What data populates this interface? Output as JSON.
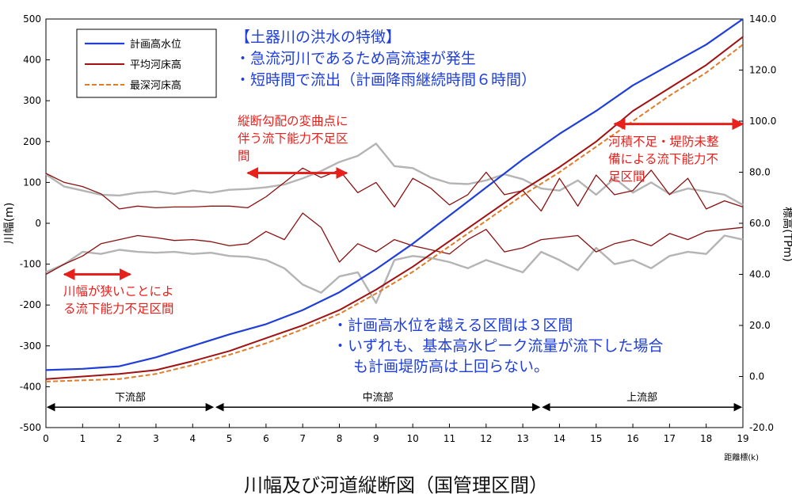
{
  "chart_data": {
    "type": "line",
    "title": "川幅及び河道縦断図（国管理区間）",
    "xlabel": "距離標(k)",
    "ylabel_left": "川幅(m)",
    "ylabel_right": "標高(TPm)",
    "xlim": [
      0,
      19
    ],
    "ylim_left": [
      -500,
      500
    ],
    "ylim_right": [
      -20,
      140
    ],
    "x_ticks": [
      "0",
      "1",
      "2",
      "3",
      "4",
      "5",
      "6",
      "7",
      "8",
      "9",
      "10",
      "11",
      "12",
      "13",
      "14",
      "15",
      "16",
      "17",
      "18",
      "19"
    ],
    "y_left_ticks": [
      "500",
      "400",
      "300",
      "200",
      "100",
      "0",
      "-100",
      "-200",
      "-300",
      "-400",
      "-500"
    ],
    "y_right_ticks": [
      "140.0",
      "120.0",
      "100.0",
      "80.0",
      "60.0",
      "40.0",
      "20.0",
      "0.0",
      "-20.0"
    ],
    "grid": false,
    "legend_position": "top-left",
    "colors": {
      "plan_wl": "#1f3fd8",
      "avg_bed": "#a01212",
      "deep_bed": "#e07b2a",
      "width": "#b4b4b4",
      "low_water": "#8a1010",
      "ann_red": "#e8201c",
      "ann_blue": "#1f3fd8"
    },
    "series": [
      {
        "name": "計画高水位",
        "axis": "right",
        "x": [
          0,
          1,
          2,
          3,
          4,
          5,
          6,
          7,
          8,
          9,
          10,
          11,
          12,
          13,
          14,
          15,
          16,
          17,
          18,
          19
        ],
        "values": [
          2.5,
          3.0,
          4.0,
          7.5,
          12,
          16.5,
          20.5,
          26,
          33,
          42,
          52,
          63,
          74,
          85,
          95,
          104,
          114,
          122,
          130,
          140
        ]
      },
      {
        "name": "平均河床高",
        "axis": "right",
        "x": [
          0,
          1,
          2,
          3,
          4,
          5,
          6,
          7,
          8,
          9,
          10,
          11,
          12,
          13,
          14,
          15,
          16,
          17,
          18,
          19
        ],
        "values": [
          -1,
          0,
          1,
          2.5,
          6,
          10,
          15,
          20,
          26,
          34,
          43,
          53,
          63,
          73,
          82,
          92,
          104,
          113,
          122,
          133
        ]
      },
      {
        "name": "最深河床高",
        "axis": "right",
        "x": [
          0,
          1,
          2,
          3,
          4,
          5,
          6,
          7,
          8,
          9,
          10,
          11,
          12,
          13,
          14,
          15,
          16,
          17,
          18,
          19
        ],
        "values": [
          -2,
          -1.5,
          -1,
          1,
          4.5,
          8.5,
          13,
          18.5,
          24.5,
          32.5,
          41,
          51,
          61,
          71,
          80,
          90,
          100,
          110,
          119,
          130
        ]
      }
    ],
    "width_series": [
      {
        "axis": "left",
        "x": [
          0,
          0.5,
          1,
          1.5,
          2,
          2.5,
          3,
          3.5,
          4,
          4.5,
          5,
          5.5,
          6,
          6.5,
          7,
          7.5,
          8,
          8.5,
          9,
          9.5,
          10,
          10.5,
          11,
          11.5,
          12,
          12.5,
          13,
          13.5,
          14,
          14.5,
          15,
          15.5,
          16,
          16.5,
          17,
          17.5,
          18,
          18.5,
          19
        ],
        "values": [
          120,
          90,
          80,
          70,
          68,
          75,
          78,
          72,
          80,
          75,
          82,
          84,
          88,
          95,
          110,
          128,
          150,
          165,
          195,
          140,
          135,
          112,
          98,
          96,
          105,
          120,
          108,
          85,
          80,
          105,
          70,
          110,
          75,
          100,
          72,
          85,
          78,
          70,
          45
        ]
      },
      {
        "axis": "left",
        "x": [
          0,
          0.5,
          1,
          1.5,
          2,
          2.5,
          3,
          3.5,
          4,
          4.5,
          5,
          5.5,
          6,
          6.5,
          7,
          7.5,
          8,
          8.5,
          9,
          9.5,
          10,
          10.5,
          11,
          11.5,
          12,
          12.5,
          13,
          13.5,
          14,
          14.5,
          15,
          15.5,
          16,
          16.5,
          17,
          17.5,
          18,
          18.5,
          19
        ],
        "values": [
          -120,
          -100,
          -70,
          -75,
          -65,
          -70,
          -72,
          -70,
          -75,
          -72,
          -80,
          -82,
          -90,
          -110,
          -150,
          -170,
          -130,
          -120,
          -195,
          -90,
          -80,
          -85,
          -95,
          -110,
          -90,
          -105,
          -120,
          -70,
          -90,
          -115,
          -60,
          -100,
          -90,
          -110,
          -80,
          -70,
          -75,
          -30,
          -40
        ]
      }
    ],
    "low_water_series": [
      {
        "axis": "left",
        "x": [
          0,
          0.5,
          1,
          1.5,
          2,
          2.5,
          3,
          3.5,
          4,
          4.5,
          5,
          5.5,
          6,
          6.5,
          7,
          7.5,
          8,
          8.5,
          9,
          9.5,
          10,
          10.5,
          11,
          11.5,
          12,
          12.5,
          13,
          13.5,
          14,
          14.5,
          15,
          15.5,
          16,
          16.5,
          17,
          17.5,
          18,
          18.5,
          19
        ],
        "values": [
          122,
          100,
          90,
          72,
          35,
          42,
          38,
          40,
          40,
          42,
          42,
          38,
          65,
          100,
          135,
          112,
          130,
          75,
          100,
          40,
          110,
          85,
          45,
          70,
          125,
          70,
          80,
          30,
          110,
          42,
          118,
          70,
          80,
          130,
          70,
          110,
          35,
          55,
          40
        ]
      },
      {
        "axis": "left",
        "x": [
          0,
          0.5,
          1,
          1.5,
          2,
          2.5,
          3,
          3.5,
          4,
          4.5,
          5,
          5.5,
          6,
          6.5,
          7,
          7.5,
          8,
          8.5,
          9,
          9.5,
          10,
          10.5,
          11,
          11.5,
          12,
          12.5,
          13,
          13.5,
          14,
          14.5,
          15,
          15.5,
          16,
          16.5,
          17,
          17.5,
          18,
          18.5,
          19
        ],
        "values": [
          -125,
          -100,
          -80,
          -50,
          -40,
          -30,
          -35,
          -42,
          -40,
          -45,
          -55,
          -50,
          -20,
          -40,
          25,
          -10,
          -95,
          -50,
          -70,
          -40,
          -55,
          -65,
          -75,
          -40,
          -15,
          -70,
          -60,
          -40,
          -35,
          -30,
          -70,
          -50,
          -40,
          -55,
          -25,
          -40,
          -20,
          -15,
          -10
        ]
      }
    ],
    "sections": [
      {
        "label": "下流部",
        "from": 0,
        "to": 4.6
      },
      {
        "label": "中流部",
        "from": 4.6,
        "to": 13.5
      },
      {
        "label": "上流部",
        "from": 13.5,
        "to": 19
      }
    ],
    "shortage_arrows": [
      {
        "from": 0.5,
        "to": 2.3,
        "left_value": -125
      },
      {
        "from": 5.5,
        "to": 8.2,
        "left_value": 123
      },
      {
        "from": 15.5,
        "to": 19.0,
        "left_value": 243
      }
    ]
  },
  "annotations": {
    "features_title": "【土器川の洪水の特徴】",
    "features_1": "・急流河川であるため高流速が発生",
    "features_2": "・短時間で流出（計画降雨継続時間６時間）",
    "red_mid_1": "縦断勾配の変曲点に",
    "red_mid_2": "伴う流下能力不足区",
    "red_mid_3": "間",
    "red_left_1": "川幅が狭いことによ",
    "red_left_2": "る流下能力不足区間",
    "red_right_1": "河積不足・堤防未整",
    "red_right_2": "備による流下能力不",
    "red_right_3": "足区間",
    "bottom_1": "・計画高水位を越える区間は３区間",
    "bottom_2": "・いずれも、基本高水ピーク流量が流下した場合",
    "bottom_3": "も計画堤防高は上回らない。"
  }
}
